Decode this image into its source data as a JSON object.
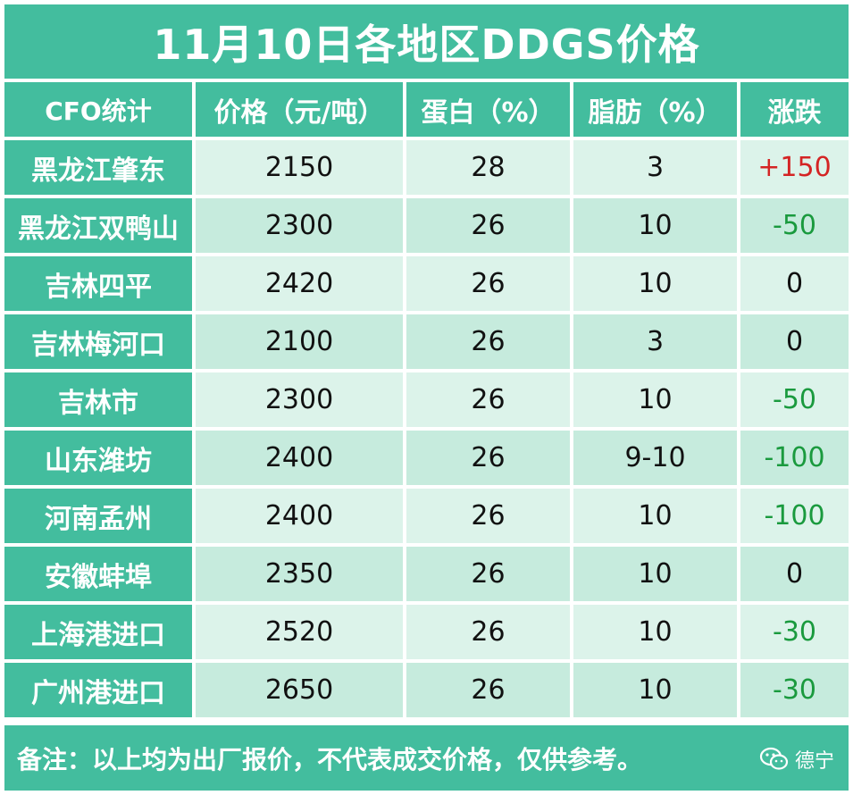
{
  "title": "11月10日各地区DDGS价格",
  "headers": [
    "CFO统计",
    "价格（元/吨）",
    "蛋白（%）",
    "脂肪（%）",
    "涨跌"
  ],
  "rows": [
    {
      "region": "黑龙江肇东",
      "price": "2150",
      "protein": "28",
      "fat": "3",
      "change": "+150",
      "trend": "up"
    },
    {
      "region": "黑龙江双鸭山",
      "price": "2300",
      "protein": "26",
      "fat": "10",
      "change": "-50",
      "trend": "down"
    },
    {
      "region": "吉林四平",
      "price": "2420",
      "protein": "26",
      "fat": "10",
      "change": "0",
      "trend": "zero"
    },
    {
      "region": "吉林梅河口",
      "price": "2100",
      "protein": "26",
      "fat": "3",
      "change": "0",
      "trend": "zero"
    },
    {
      "region": "吉林市",
      "price": "2300",
      "protein": "26",
      "fat": "10",
      "change": "-50",
      "trend": "down"
    },
    {
      "region": "山东潍坊",
      "price": "2400",
      "protein": "26",
      "fat": "9-10",
      "change": "-100",
      "trend": "down"
    },
    {
      "region": "河南孟州",
      "price": "2400",
      "protein": "26",
      "fat": "10",
      "change": "-100",
      "trend": "down"
    },
    {
      "region": "安徽蚌埠",
      "price": "2350",
      "protein": "26",
      "fat": "10",
      "change": "0",
      "trend": "zero"
    },
    {
      "region": "上海港进口",
      "price": "2520",
      "protein": "26",
      "fat": "10",
      "change": "-30",
      "trend": "down"
    },
    {
      "region": "广州港进口",
      "price": "2650",
      "protein": "26",
      "fat": "10",
      "change": "-30",
      "trend": "down"
    }
  ],
  "footer": "备注：以上均为出厂报价，不代表成交价格，仅供参考。",
  "watermark": {
    "icon": "wechat-icon",
    "text": "德宁"
  },
  "colors": {
    "header_bg": "#43bd9e",
    "row_light": "#dcf3ea",
    "row_dark": "#c6ebdd",
    "up": "#d42424",
    "down": "#1a9a3e"
  }
}
